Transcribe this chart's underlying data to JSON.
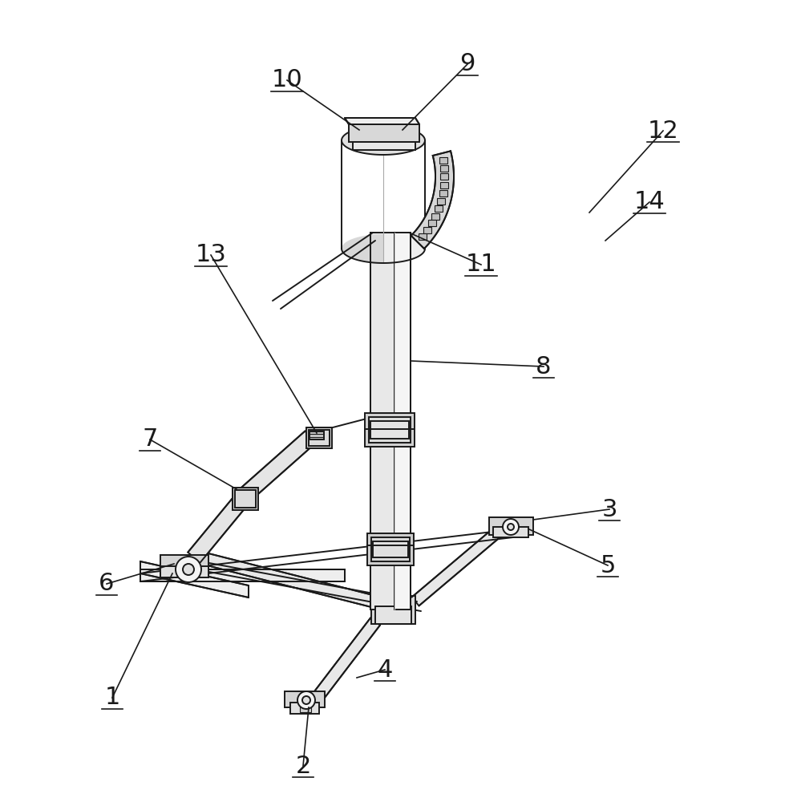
{
  "bg_color": "#ffffff",
  "lc": "#1a1a1a",
  "lw": 1.4,
  "tlw": 0.8,
  "fs": 22,
  "figw": 9.89,
  "figh": 10.0,
  "dpi": 100
}
